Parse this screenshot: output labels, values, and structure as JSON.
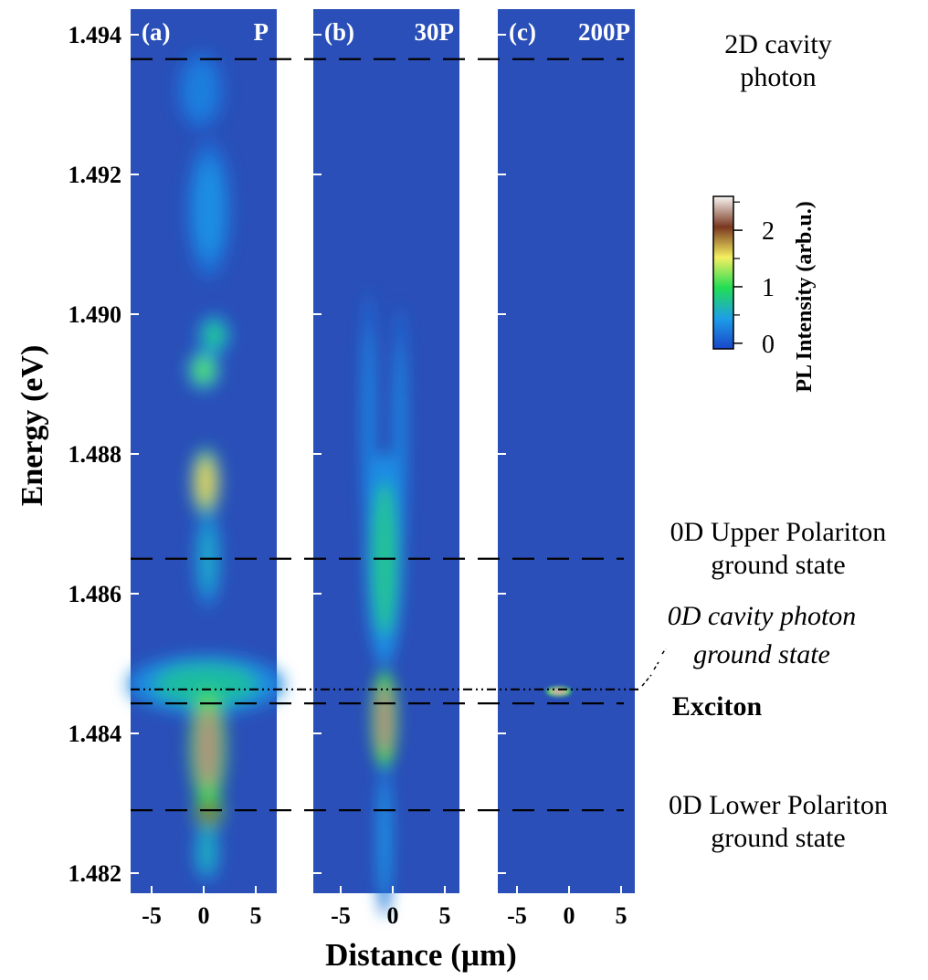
{
  "chart_data": {
    "type": "heatmap",
    "ylabel": "Energy (eV)",
    "xlabel": "Distance (µm)",
    "ylim": [
      1.4818,
      1.4943
    ],
    "xlim": [
      -7,
      7
    ],
    "y_ticks": [
      1.482,
      1.484,
      1.486,
      1.488,
      1.49,
      1.492,
      1.494
    ],
    "y_tick_labels": [
      "1.482",
      "1.484",
      "1.486",
      "1.488",
      "1.490",
      "1.492",
      "1.494"
    ],
    "x_ticks": [
      -5,
      0,
      5
    ],
    "x_tick_labels": [
      "-5",
      "0",
      "5"
    ],
    "panels": [
      {
        "tag": "(a)",
        "power": "P",
        "spots": [
          {
            "x": 0.5,
            "y": 1.4915,
            "sx": 1.4,
            "sy": 0.0007,
            "i": 0.35
          },
          {
            "x": -0.3,
            "y": 1.4932,
            "sx": 1.5,
            "sy": 0.0004,
            "i": 0.25
          },
          {
            "x": 1.0,
            "y": 1.4897,
            "sx": 1.0,
            "sy": 0.0002,
            "i": 0.8
          },
          {
            "x": 0.0,
            "y": 1.4892,
            "sx": 1.0,
            "sy": 0.0002,
            "i": 1.1
          },
          {
            "x": 0.2,
            "y": 1.4876,
            "sx": 0.9,
            "sy": 0.00035,
            "i": 1.6
          },
          {
            "x": 0.4,
            "y": 1.4865,
            "sx": 0.8,
            "sy": 0.0005,
            "i": 0.55
          },
          {
            "x": 0.2,
            "y": 1.4847,
            "sx": 5.0,
            "sy": 0.0003,
            "i": 0.7
          },
          {
            "x": 0.4,
            "y": 1.4838,
            "sx": 1.1,
            "sy": 0.0006,
            "i": 2.3
          },
          {
            "x": 0.5,
            "y": 1.4829,
            "sx": 0.9,
            "sy": 0.0002,
            "i": 2.0
          },
          {
            "x": 0.3,
            "y": 1.4823,
            "sx": 0.8,
            "sy": 0.0003,
            "i": 0.6
          }
        ]
      },
      {
        "tag": "(b)",
        "power": "30P",
        "spots": [
          {
            "x": -2.3,
            "y": 1.4885,
            "sx": 0.5,
            "sy": 0.0013,
            "i": 0.3
          },
          {
            "x": 0.7,
            "y": 1.4883,
            "sx": 0.5,
            "sy": 0.0013,
            "i": 0.3
          },
          {
            "x": -0.8,
            "y": 1.4865,
            "sx": 1.2,
            "sy": 0.0011,
            "i": 0.75
          },
          {
            "x": -0.8,
            "y": 1.4842,
            "sx": 0.8,
            "sy": 0.0005,
            "i": 2.3
          },
          {
            "x": -0.8,
            "y": 1.4825,
            "sx": 0.5,
            "sy": 0.0008,
            "i": 0.4
          }
        ]
      },
      {
        "tag": "(c)",
        "power": "200P",
        "spots": [
          {
            "x": -1.0,
            "y": 1.4846,
            "sx": 0.8,
            "sy": 5e-05,
            "i": 2.4
          }
        ]
      }
    ],
    "reference_lines": [
      {
        "energy": 1.49365,
        "style": "dashed",
        "label_lines": [
          "2D cavity",
          "photon"
        ],
        "label_style": "normal"
      },
      {
        "energy": 1.4865,
        "style": "dashed",
        "label_lines": [
          "0D Upper Polariton",
          "ground state"
        ],
        "label_style": "normal"
      },
      {
        "energy": 1.48463,
        "style": "dash-dot-dot",
        "label_lines": [
          "0D cavity photon",
          "ground state"
        ],
        "label_style": "italic"
      },
      {
        "energy": 1.48443,
        "style": "dashed",
        "label_lines": [
          "Exciton"
        ],
        "label_style": "bold"
      },
      {
        "energy": 1.4829,
        "style": "dashed",
        "label_lines": [
          "0D Lower Polariton",
          "ground state"
        ],
        "label_style": "normal"
      }
    ],
    "colorbar": {
      "label": "PL Intensity (arb.u.)",
      "range": [
        -0.1,
        2.6
      ],
      "ticks": [
        0,
        1,
        2
      ],
      "tick_labels": [
        "0",
        "1",
        "2"
      ],
      "colors": [
        "#1a46c8",
        "#1d9ee8",
        "#22dd55",
        "#f4ef60",
        "#7a3820",
        "#f8f6f4"
      ]
    }
  }
}
